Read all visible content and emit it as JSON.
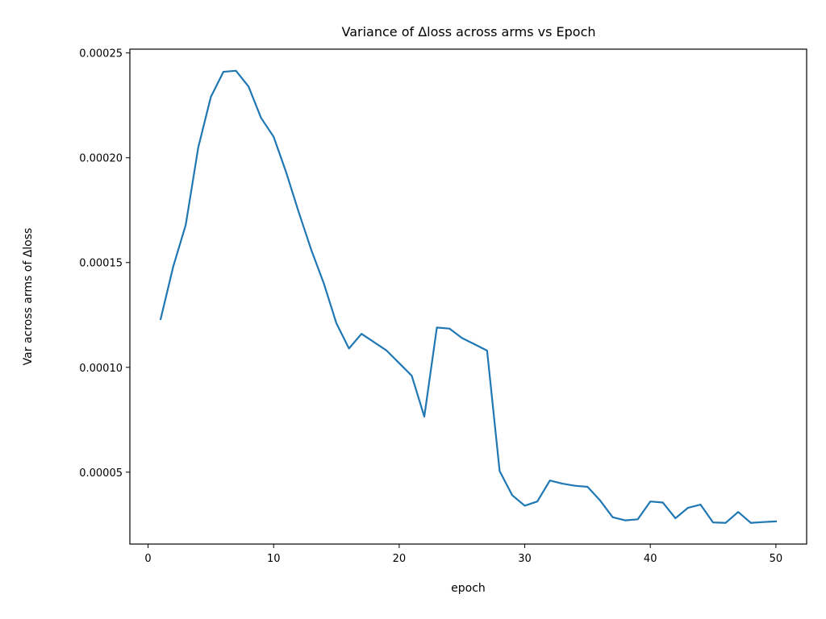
{
  "chart_data": {
    "type": "line",
    "title": "Variance of Δloss across arms vs Epoch",
    "xlabel": "epoch",
    "ylabel": "Var across arms of Δloss",
    "xlim": [
      -1.45,
      52.45
    ],
    "ylim": [
      1.57e-05,
      0.0002518
    ],
    "xticks": [
      0,
      10,
      20,
      30,
      40,
      50
    ],
    "xtick_labels": [
      "0",
      "10",
      "20",
      "30",
      "40",
      "50"
    ],
    "yticks": [
      5e-05,
      0.0001,
      0.00015,
      0.0002,
      0.00025
    ],
    "ytick_labels": [
      "0.00005",
      "0.00010",
      "0.00015",
      "0.00020",
      "0.00025"
    ],
    "grid": false,
    "legend": "none",
    "color": "#1f77b4",
    "series": [
      {
        "x": [
          1,
          2,
          3,
          4,
          5,
          6,
          7,
          8,
          9,
          10,
          11,
          12,
          13,
          14,
          15,
          16,
          17,
          18,
          19,
          20,
          21,
          22,
          23,
          24,
          25,
          26,
          27,
          28,
          29,
          30,
          31,
          32,
          33,
          34,
          35,
          36,
          37,
          38,
          39,
          40,
          41,
          42,
          43,
          44,
          45,
          46,
          47,
          48,
          49,
          50
        ],
        "values": [
          0.000123,
          0.000148,
          0.000168,
          0.000205,
          0.000229,
          0.000241,
          0.0002415,
          0.000234,
          0.000219,
          0.00021,
          0.000193,
          0.000174,
          0.000156,
          0.00014,
          0.000121,
          0.000109,
          0.000116,
          0.000112,
          0.000108,
          0.000102,
          9.6e-05,
          7.65e-05,
          0.000119,
          0.0001185,
          0.000114,
          0.000111,
          0.000108,
          5.05e-05,
          3.9e-05,
          3.4e-05,
          3.6e-05,
          4.6e-05,
          4.45e-05,
          4.35e-05,
          4.3e-05,
          3.65e-05,
          2.85e-05,
          2.7e-05,
          2.75e-05,
          3.6e-05,
          3.55e-05,
          2.8e-05,
          3.3e-05,
          3.45e-05,
          2.6e-05,
          2.58e-05,
          3.1e-05,
          2.58e-05,
          2.62e-05,
          2.65e-05
        ]
      }
    ]
  }
}
